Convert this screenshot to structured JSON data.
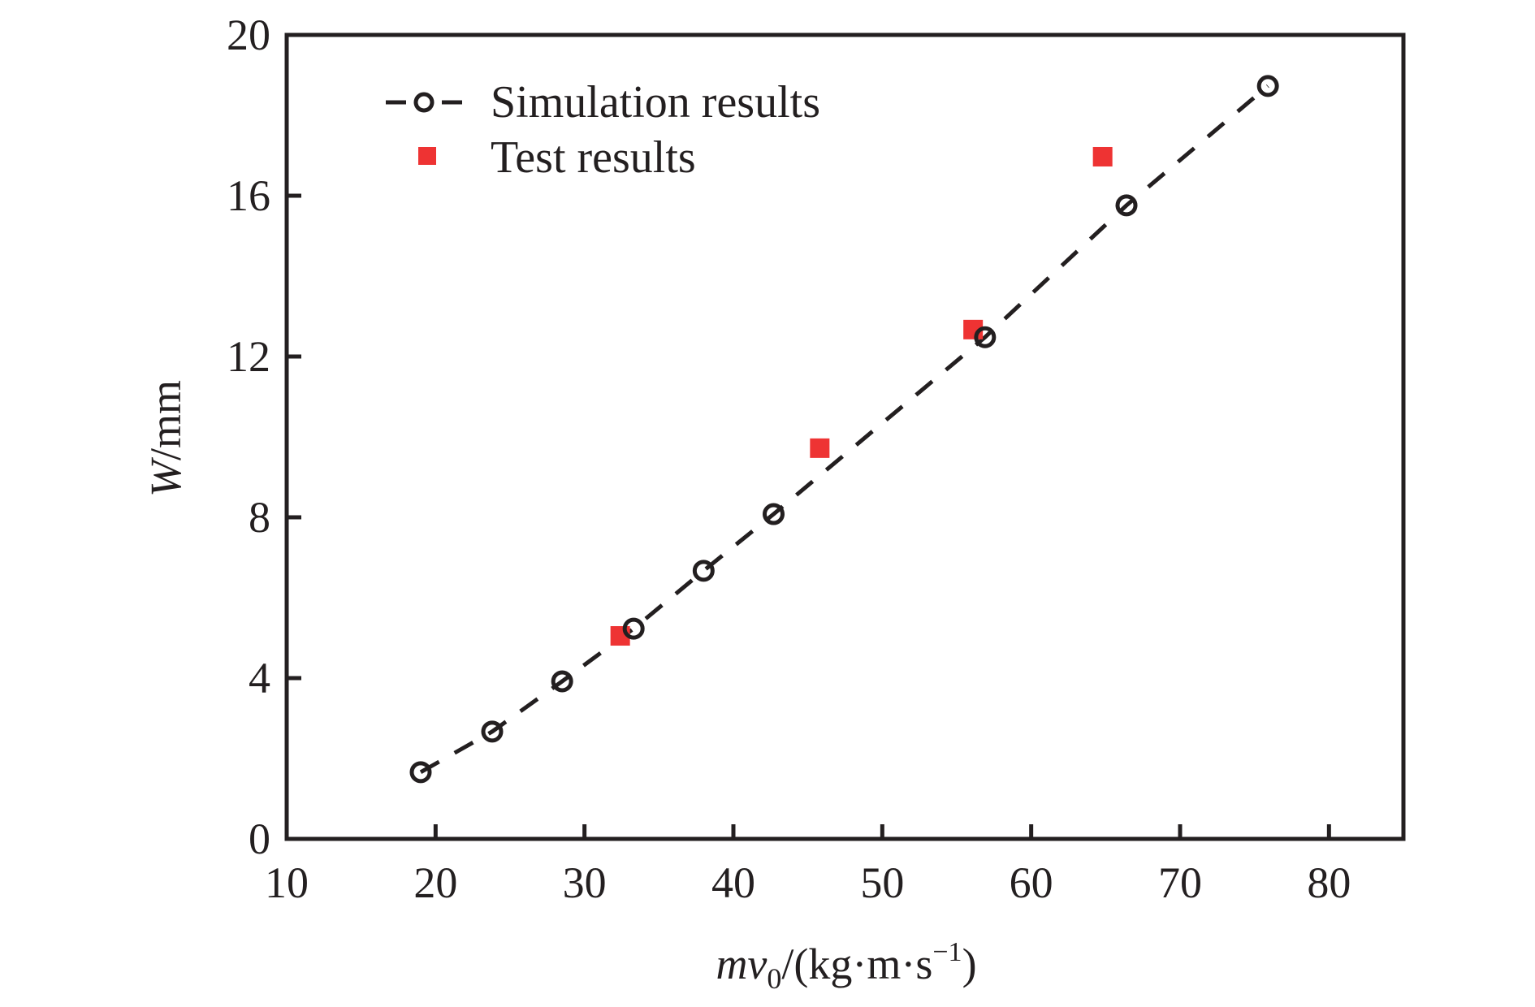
{
  "chart_data": {
    "type": "scatter",
    "title": "",
    "xlabel": {
      "italic": "mv",
      "sub": "0",
      "rest": "/(kg·m·s",
      "sup": "−1",
      "close": ")"
    },
    "ylabel": {
      "italic": "W",
      "rest": "/mm"
    },
    "xlim": [
      10,
      85
    ],
    "ylim": [
      0,
      20
    ],
    "xticks": [
      10,
      20,
      30,
      40,
      50,
      60,
      70,
      80
    ],
    "yticks": [
      0,
      4,
      8,
      12,
      16,
      20
    ],
    "grid": false,
    "legend_position": "top-left",
    "series": [
      {
        "name": "Simulation results",
        "style": "dashed-line-open-circle",
        "color": "#231f20",
        "x": [
          19.0,
          23.8,
          28.5,
          33.3,
          38.0,
          42.7,
          56.9,
          66.4,
          75.9
        ],
        "y": [
          1.66,
          2.67,
          3.92,
          5.23,
          6.67,
          8.08,
          12.48,
          15.76,
          18.73
        ]
      },
      {
        "name": "Test results",
        "style": "filled-square",
        "color": "#ee3333",
        "x": [
          32.4,
          45.8,
          56.1,
          64.8
        ],
        "y": [
          5.05,
          9.72,
          12.67,
          16.97
        ]
      }
    ]
  }
}
